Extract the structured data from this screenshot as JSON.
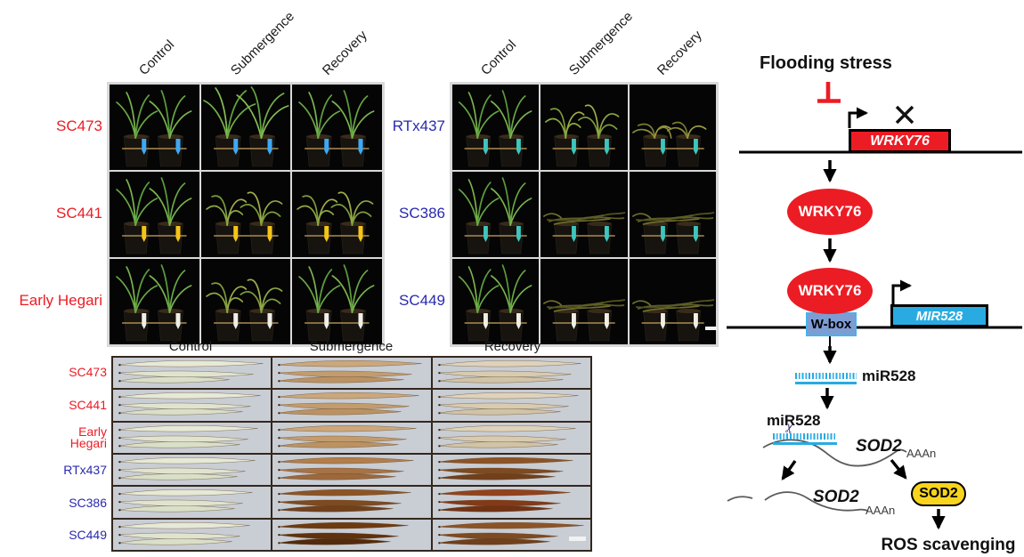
{
  "palette": {
    "tolerant_label_color": "#ec1c24",
    "sensitive_label_color": "#2929b0",
    "diagram_red": "#ec1c24",
    "diagram_cyan": "#29abe2",
    "wbox_fill": "#7e9cd4",
    "sod2_protein_fill": "#f8d41c"
  },
  "photo_columns": [
    "Control",
    "Submergence",
    "Recovery"
  ],
  "photo_panel_left": {
    "rows": [
      {
        "label": "SC473",
        "label_color": "#ec1c24",
        "tag_color": "#3fa9f5",
        "states": [
          "healthy",
          "lush",
          "healthy"
        ]
      },
      {
        "label": "SC441",
        "label_color": "#ec1c24",
        "tag_color": "#f5c518",
        "states": [
          "healthy",
          "droopy",
          "droopy"
        ]
      },
      {
        "label": "Early Hegari",
        "label_color": "#ec1c24",
        "tag_color": "#efefe6",
        "states": [
          "healthy",
          "droopy",
          "healthy"
        ]
      }
    ]
  },
  "photo_panel_right": {
    "rows": [
      {
        "label": "RTx437",
        "label_color": "#2929b0",
        "tag_color": "#3ec6be",
        "states": [
          "healthy",
          "droopy",
          "wilted"
        ]
      },
      {
        "label": "SC386",
        "label_color": "#2929b0",
        "tag_color": "#3ec6be",
        "states": [
          "healthy",
          "dead",
          "dead"
        ]
      },
      {
        "label": "SC449",
        "label_color": "#2929b0",
        "tag_color": "#efefe6",
        "states": [
          "healthy",
          "dead",
          "dead"
        ]
      }
    ]
  },
  "leaf_panel": {
    "columns": [
      "Control",
      "Submergence",
      "Recovery"
    ],
    "rows": [
      {
        "label_lines": [
          "SC473"
        ],
        "label_color": "#ec1c24",
        "stains": [
          "pale",
          "light",
          "verylight"
        ]
      },
      {
        "label_lines": [
          "SC441"
        ],
        "label_color": "#ec1c24",
        "stains": [
          "pale",
          "light",
          "verylight"
        ]
      },
      {
        "label_lines": [
          "Early",
          "Hegari"
        ],
        "label_color": "#ec1c24",
        "stains": [
          "pale",
          "light",
          "verylight"
        ]
      },
      {
        "label_lines": [
          "RTx437"
        ],
        "label_color": "#2929b0",
        "stains": [
          "pale",
          "medium",
          "dark"
        ]
      },
      {
        "label_lines": [
          "SC386"
        ],
        "label_color": "#2929b0",
        "stains": [
          "pale",
          "dark",
          "darkred"
        ]
      },
      {
        "label_lines": [
          "SC449"
        ],
        "label_color": "#2929b0",
        "stains": [
          "pale",
          "verydark",
          "dark"
        ]
      }
    ]
  },
  "diagram": {
    "title": "Flooding stress",
    "wrky76_gene": "WRKY76",
    "wrky76_protein": "WRKY76",
    "wbox": "W-box",
    "mir528_gene": "MIR528",
    "mir528": "miR528",
    "sod2_mrna": "SOD2",
    "polya": "AAAn",
    "sod2_protein": "SOD2",
    "outcome": "ROS scavenging"
  }
}
